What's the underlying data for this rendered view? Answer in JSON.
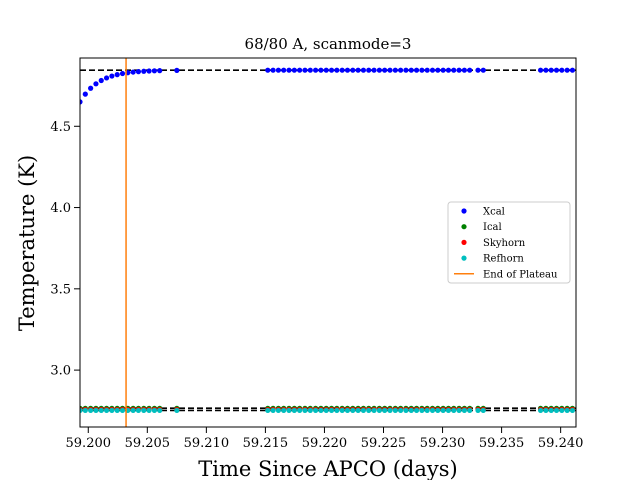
{
  "chart_data": {
    "type": "scatter",
    "title": "68/80 A, scanmode=3",
    "xlabel": "Time Since APCO (days)",
    "ylabel": "Temperature (K)",
    "xlim": [
      59.1993,
      59.2413
    ],
    "ylim": [
      2.65,
      4.92
    ],
    "xticks": [
      59.2,
      59.205,
      59.21,
      59.215,
      59.22,
      59.225,
      59.23,
      59.235,
      59.24
    ],
    "xtick_labels": [
      "59.200",
      "59.205",
      "59.210",
      "59.215",
      "59.220",
      "59.225",
      "59.230",
      "59.235",
      "59.240"
    ],
    "yticks": [
      3.0,
      3.5,
      4.0,
      4.5
    ],
    "ytick_labels": [
      "3.0",
      "3.5",
      "4.0",
      "4.5"
    ],
    "grid": false,
    "legend_position": "right",
    "reference_lines": [
      4.845,
      2.766,
      2.752
    ],
    "end_of_plateau_x": 59.2032,
    "data_segments": [
      [
        59.1993,
        59.2062
      ],
      [
        59.2075,
        59.2078
      ],
      [
        59.2152,
        59.2323
      ],
      [
        59.233,
        59.2337
      ],
      [
        59.2383,
        59.2413
      ]
    ],
    "series": [
      {
        "name": "Xcal",
        "color": "#0000ff",
        "plateau_value": 4.845,
        "start_value": 4.65
      },
      {
        "name": "Ical",
        "color": "#008000",
        "value": 2.765
      },
      {
        "name": "Skyhorn",
        "color": "#ff0000",
        "value": 2.758
      },
      {
        "name": "Refhorn",
        "color": "#00bfbf",
        "value": 2.752
      },
      {
        "name": "End of Plateau",
        "color": "#ff7f0e",
        "kind": "vline"
      }
    ]
  }
}
